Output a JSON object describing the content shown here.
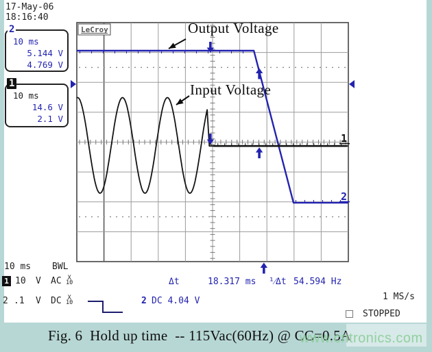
{
  "datetime": {
    "date": "17-May-06",
    "time": "18:16:40"
  },
  "brand": "LeCroy",
  "box2": {
    "label": "2",
    "line1": "10 ms",
    "line2": "5.144 V",
    "line3": "4.769 V"
  },
  "box1": {
    "label": "1",
    "line1": "10 ms",
    "line2": "14.6 V",
    "line3": "2.1 V"
  },
  "annotations": {
    "output": "Output Voltage",
    "input": "Input Voltage"
  },
  "trace_labels": {
    "ch1": "1",
    "ch2": "2"
  },
  "status": {
    "timebase": "10 ms",
    "bwl": "BWL",
    "ch1_label": "1",
    "ch1_scale": "10",
    "ch1_unit": "V",
    "ch1_coupling": "AC",
    "ch2_label": "2",
    "ch2_scale": ".1",
    "ch2_unit": "V",
    "ch2_coupling": "DC",
    "probe_x": "X",
    "probe_10": "10",
    "dt_label": "Δt",
    "dt_value": "18.317 ms",
    "inv_dt_label": "¹⁄Δt",
    "inv_dt_value": "54.594 Hz",
    "trig_ch": "2",
    "trig_value": "DC 4.04 V",
    "sample_rate": "1 MS/s",
    "acq_state": "STOPPED"
  },
  "caption": "Fig. 6  Hold up time  -- 115Vac(60Hz) @ CC=0.5A",
  "watermark": "www.cntronics.com",
  "colors": {
    "blue": "#2323b0",
    "black": "#141414",
    "navy": "#1c1c6e",
    "grid": "#9a9a9a",
    "grid_dark": "#5a5a5a",
    "grid_border": "#444444",
    "bg": "#b7d7d5",
    "watermark": "#8bcd98"
  },
  "chart_data": {
    "type": "line",
    "title": "Hold up time - oscilloscope capture",
    "instrument": "LeCroy oscilloscope",
    "x_axis": {
      "per_div": "10 ms",
      "divisions": 10,
      "sample_rate": "1 MS/s"
    },
    "y_axis": {
      "divisions": 8,
      "ch1": "10 V/div AC 1/10 probe",
      "ch2": "0.1 V/div DC 1/10 probe"
    },
    "grid": {
      "dotted_lines_div": [
        1.5,
        6.5
      ],
      "center_axes_ticks": true
    },
    "series": [
      {
        "name": "Output Voltage",
        "channel": 2,
        "color_key": "blue",
        "segments": {
          "flat_y_div": 0.94,
          "drop_start_div": 6.52,
          "drop_end_div": 7.98,
          "bottom_y_div": 6.03,
          "end_div": 10
        }
      },
      {
        "name": "Input Voltage",
        "channel": 1,
        "color_key": "black",
        "sine": {
          "center_y_div": 4.11,
          "amplitude_div": 1.6,
          "period_div": 1.654,
          "peak_at_div": 0.03,
          "end_div": 4.8
        },
        "collapse": {
          "x_div": 4.88,
          "flat_y_div": 4.13,
          "end_div": 10
        }
      }
    ],
    "cursors": {
      "t1_div": 4.92,
      "t2_div": 6.72,
      "dt": "18.317 ms",
      "inv_dt": "54.594 Hz"
    },
    "trigger": {
      "time_div": 6.89,
      "level_div": 2.06,
      "source": "2",
      "readout": "DC 4.04 V",
      "slope": "falling"
    },
    "trace_position_markers": {
      "ch1_y_div": 4.13,
      "ch2_y_div": 6.03
    },
    "measurements": {
      "ch2_values": [
        "5.144 V",
        "4.769 V"
      ],
      "ch1_values": [
        "14.6 V",
        "2.1 V"
      ],
      "window": "10 ms/div"
    }
  }
}
